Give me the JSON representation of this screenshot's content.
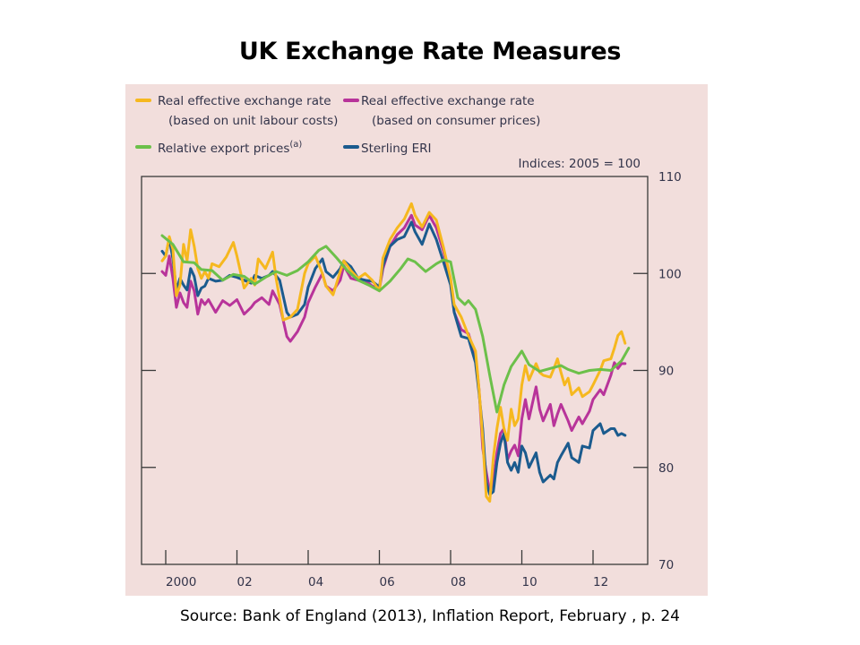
{
  "title": "UK Exchange Rate Measures",
  "source": "Source: Bank of England (2013),   Inflation Report, February , p. 24",
  "chart_data": {
    "type": "line",
    "title": "UK Exchange Rate Measures",
    "units_note": "Indices:  2005 = 100",
    "xlabel": "",
    "ylabel": "",
    "xlim": [
      1999.6,
      2013.5
    ],
    "ylim": [
      70,
      110
    ],
    "x_ticks": [
      2000,
      2002,
      2004,
      2006,
      2008,
      2010,
      2012
    ],
    "x_tick_labels": [
      "2000",
      "02",
      "04",
      "06",
      "08",
      "10",
      "12"
    ],
    "y_ticks": [
      70,
      80,
      90,
      100,
      110
    ],
    "y_tick_labels": [
      "70",
      "80",
      "90",
      "100",
      "110"
    ],
    "y_axis_side": "right",
    "grid": false,
    "legend_position": "top",
    "series": [
      {
        "name": "Real effective exchange rate (based on unit labour costs)",
        "legend_line1": "Real effective exchange rate",
        "legend_line2": "(based on unit labour costs)",
        "color": "#f6b81f",
        "x": [
          1999.9,
          2000.0,
          2000.1,
          2000.2,
          2000.3,
          2000.4,
          2000.5,
          2000.6,
          2000.7,
          2000.8,
          2000.9,
          2001.0,
          2001.1,
          2001.2,
          2001.3,
          2001.5,
          2001.7,
          2001.9,
          2002.0,
          2002.2,
          2002.4,
          2002.5,
          2002.6,
          2002.8,
          2003.0,
          2003.1,
          2003.3,
          2003.5,
          2003.7,
          2003.9,
          2004.0,
          2004.2,
          2004.4,
          2004.5,
          2004.7,
          2004.9,
          2005.0,
          2005.2,
          2005.4,
          2005.6,
          2005.8,
          2006.0,
          2006.1,
          2006.3,
          2006.5,
          2006.7,
          2006.9,
          2007.0,
          2007.2,
          2007.4,
          2007.6,
          2007.8,
          2008.0,
          2008.1,
          2008.3,
          2008.5,
          2008.7,
          2008.8,
          2008.9,
          2009.0,
          2009.1,
          2009.2,
          2009.3,
          2009.4,
          2009.5,
          2009.6,
          2009.7,
          2009.8,
          2009.9,
          2010.0,
          2010.1,
          2010.2,
          2010.4,
          2010.5,
          2010.6,
          2010.8,
          2010.9,
          2011.0,
          2011.1,
          2011.2,
          2011.3,
          2011.4,
          2011.6,
          2011.7,
          2011.9,
          2012.0,
          2012.2,
          2012.3,
          2012.5,
          2012.6,
          2012.7,
          2012.8,
          2012.9
        ],
        "values": [
          101.3,
          101.8,
          103.8,
          102.5,
          97.7,
          98.8,
          103,
          101.3,
          104.5,
          102.8,
          100.5,
          99.5,
          100.2,
          99.5,
          101,
          100.7,
          101.7,
          103.2,
          101.8,
          98.5,
          99.5,
          98.8,
          101.5,
          100.5,
          102.2,
          99.5,
          95.2,
          95.5,
          96.3,
          100,
          101,
          101.8,
          100,
          98.7,
          97.8,
          100.2,
          101.3,
          100.3,
          99.5,
          100,
          99.3,
          98.2,
          101.6,
          103.5,
          104.7,
          105.6,
          107.2,
          106,
          104.8,
          106.3,
          105.5,
          102.7,
          99.5,
          96.8,
          95.5,
          93.6,
          92,
          88,
          83,
          77,
          76.5,
          81,
          84,
          86.2,
          84,
          82.8,
          86,
          84.3,
          85,
          88.5,
          90.5,
          89,
          90.7,
          89.8,
          89.5,
          89.3,
          90.2,
          91.2,
          89.8,
          88.5,
          89.2,
          87.5,
          88.2,
          87.3,
          87.8,
          88.5,
          90,
          91,
          91.2,
          92.3,
          93.6,
          94,
          92.8
        ]
      },
      {
        "name": "Real effective exchange rate (based on consumer prices)",
        "legend_line1": "Real effective exchange rate",
        "legend_line2": "(based on consumer prices)",
        "color": "#b8349a",
        "x": [
          1999.9,
          2000.0,
          2000.1,
          2000.2,
          2000.3,
          2000.4,
          2000.5,
          2000.6,
          2000.7,
          2000.8,
          2000.9,
          2001.0,
          2001.1,
          2001.2,
          2001.4,
          2001.6,
          2001.8,
          2002.0,
          2002.2,
          2002.4,
          2002.5,
          2002.7,
          2002.9,
          2003.0,
          2003.2,
          2003.4,
          2003.5,
          2003.7,
          2003.9,
          2004.0,
          2004.2,
          2004.4,
          2004.5,
          2004.7,
          2004.9,
          2005.0,
          2005.2,
          2005.4,
          2005.6,
          2005.8,
          2006.0,
          2006.1,
          2006.3,
          2006.5,
          2006.7,
          2006.9,
          2007.0,
          2007.2,
          2007.4,
          2007.6,
          2007.8,
          2008.0,
          2008.1,
          2008.3,
          2008.5,
          2008.7,
          2008.8,
          2008.9,
          2009.0,
          2009.1,
          2009.2,
          2009.3,
          2009.4,
          2009.5,
          2009.6,
          2009.7,
          2009.8,
          2009.9,
          2010.0,
          2010.1,
          2010.2,
          2010.4,
          2010.5,
          2010.6,
          2010.8,
          2010.9,
          2011.0,
          2011.1,
          2011.3,
          2011.4,
          2011.6,
          2011.7,
          2011.9,
          2012.0,
          2012.2,
          2012.3,
          2012.5,
          2012.6,
          2012.7,
          2012.8,
          2012.9
        ],
        "values": [
          100.2,
          99.8,
          101.8,
          99.5,
          96.5,
          98,
          97,
          96.5,
          99.2,
          98.2,
          95.8,
          97.3,
          96.8,
          97.3,
          96,
          97.2,
          96.7,
          97.3,
          95.8,
          96.5,
          97,
          97.5,
          96.8,
          98.2,
          96.8,
          93.5,
          93,
          94,
          95.5,
          97,
          98.6,
          100,
          98.7,
          98.2,
          99.3,
          100.8,
          99.5,
          99.3,
          99.3,
          98.7,
          98.4,
          100.5,
          102.8,
          104,
          104.7,
          106,
          105,
          104.5,
          106,
          104.7,
          102.3,
          99.3,
          96,
          94.2,
          93.8,
          91.5,
          88,
          82,
          79.5,
          77.5,
          78.5,
          81.5,
          83.5,
          84,
          80.8,
          81.7,
          82.3,
          81.2,
          85,
          87,
          85,
          88.3,
          86,
          84.8,
          86.5,
          84.3,
          85.5,
          86.5,
          84.8,
          83.8,
          85.2,
          84.5,
          85.8,
          87,
          88,
          87.5,
          89.5,
          90.8,
          90.2,
          90.7,
          90.7
        ]
      },
      {
        "name": "Relative export prices(a)",
        "legend_line1": "Relative export prices",
        "legend_sup": "(a)",
        "color": "#6cc04a",
        "x": [
          1999.9,
          2000.2,
          2000.5,
          2000.8,
          2001.0,
          2001.3,
          2001.6,
          2001.9,
          2002.2,
          2002.5,
          2002.8,
          2003.1,
          2003.4,
          2003.7,
          2004.0,
          2004.3,
          2004.5,
          2004.8,
          2005.1,
          2005.4,
          2005.7,
          2006.0,
          2006.3,
          2006.6,
          2006.8,
          2007.0,
          2007.3,
          2007.6,
          2007.8,
          2008.0,
          2008.2,
          2008.4,
          2008.5,
          2008.7,
          2008.9,
          2009.1,
          2009.3,
          2009.5,
          2009.7,
          2010.0,
          2010.2,
          2010.5,
          2010.8,
          2011.1,
          2011.3,
          2011.6,
          2011.9,
          2012.2,
          2012.5,
          2012.8,
          2013.0
        ],
        "values": [
          103.9,
          103,
          101.2,
          101.1,
          100.4,
          100.3,
          99.3,
          99.9,
          99.7,
          98.9,
          99.6,
          100.2,
          99.8,
          100.3,
          101.2,
          102.4,
          102.8,
          101.6,
          100.3,
          99.3,
          98.8,
          98.2,
          99.2,
          100.5,
          101.5,
          101.2,
          100.2,
          101,
          101.4,
          101.2,
          97.5,
          96.8,
          97.2,
          96.3,
          93.5,
          89.5,
          85.7,
          88.5,
          90.4,
          92,
          90.6,
          89.9,
          90.2,
          90.5,
          90.1,
          89.7,
          90,
          90.1,
          90,
          91,
          92.3
        ]
      },
      {
        "name": "Sterling ERI",
        "legend_line1": "Sterling ERI",
        "color": "#1b5b8e",
        "x": [
          1999.9,
          2000.0,
          2000.1,
          2000.2,
          2000.3,
          2000.4,
          2000.5,
          2000.6,
          2000.7,
          2000.8,
          2000.9,
          2001.0,
          2001.1,
          2001.2,
          2001.4,
          2001.6,
          2001.8,
          2002.0,
          2002.2,
          2002.4,
          2002.5,
          2002.7,
          2002.9,
          2003.0,
          2003.2,
          2003.4,
          2003.5,
          2003.7,
          2003.9,
          2004.0,
          2004.2,
          2004.4,
          2004.5,
          2004.7,
          2004.9,
          2005.0,
          2005.2,
          2005.4,
          2005.6,
          2005.8,
          2006.0,
          2006.1,
          2006.3,
          2006.5,
          2006.7,
          2006.9,
          2007.0,
          2007.2,
          2007.4,
          2007.6,
          2007.8,
          2008.0,
          2008.1,
          2008.3,
          2008.5,
          2008.7,
          2008.8,
          2008.9,
          2009.0,
          2009.1,
          2009.2,
          2009.3,
          2009.4,
          2009.5,
          2009.6,
          2009.7,
          2009.8,
          2009.9,
          2010.0,
          2010.1,
          2010.2,
          2010.4,
          2010.5,
          2010.6,
          2010.8,
          2010.9,
          2011.0,
          2011.1,
          2011.3,
          2011.4,
          2011.6,
          2011.7,
          2011.9,
          2012.0,
          2012.2,
          2012.3,
          2012.5,
          2012.6,
          2012.7,
          2012.8,
          2012.9
        ],
        "values": [
          102.3,
          101.8,
          103.6,
          101.5,
          98.3,
          99.5,
          98.8,
          98.3,
          100.5,
          99.7,
          97.7,
          98.5,
          98.7,
          99.5,
          99.2,
          99.3,
          99.8,
          99.6,
          99.3,
          99,
          99.8,
          99.5,
          99.8,
          100.2,
          99.3,
          96,
          95.5,
          95.8,
          96.8,
          98.6,
          100.5,
          101.5,
          100.2,
          99.6,
          100.5,
          101.3,
          100.7,
          99.5,
          99.3,
          99.2,
          98.6,
          100.8,
          102.8,
          103.5,
          103.8,
          105.3,
          104.3,
          103,
          105.1,
          103.5,
          101.2,
          98.8,
          96,
          93.5,
          93.3,
          90.8,
          87.6,
          84,
          78.5,
          77.2,
          77.5,
          80.5,
          82.5,
          83.5,
          80.5,
          79.7,
          80.5,
          79.5,
          82.2,
          81.5,
          80,
          81.5,
          79.5,
          78.5,
          79.2,
          78.8,
          80.5,
          81.2,
          82.5,
          81,
          80.5,
          82.2,
          82,
          83.8,
          84.5,
          83.5,
          84,
          84,
          83.3,
          83.5,
          83.3
        ]
      }
    ]
  }
}
